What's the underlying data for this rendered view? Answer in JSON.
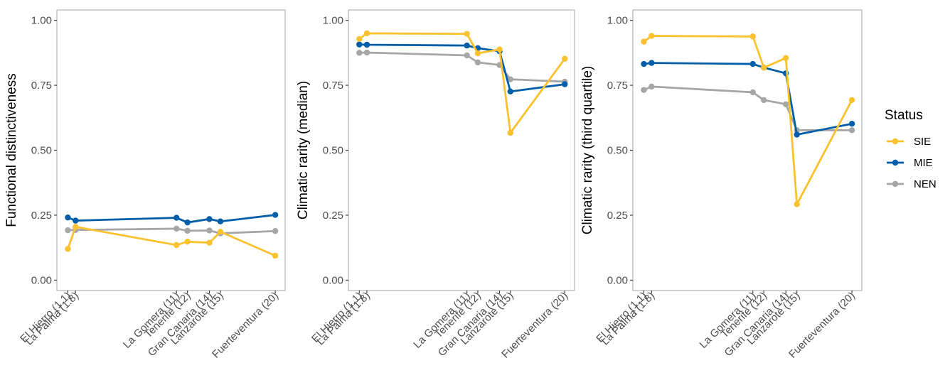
{
  "legend": {
    "title": "Status",
    "items": [
      {
        "name": "SIE",
        "color": "#F9C22E"
      },
      {
        "name": "MIE",
        "color": "#005EA8"
      },
      {
        "name": "NEN",
        "color": "#A6A6A6"
      }
    ]
  },
  "chart_data": [
    {
      "type": "line",
      "ylabel": "Functional distinctiveness",
      "xlabel": "",
      "x": [
        1.1,
        1.8,
        11,
        12,
        14,
        15,
        20
      ],
      "xticks": [
        1.1,
        1.8,
        11,
        12,
        14,
        15,
        20
      ],
      "xtick_labels": [
        "El Hierro (1.1)",
        "La Palma (1.8)",
        "La Gomera (11)",
        "Tenerife (12)",
        "Gran Canaria (14)",
        "Lanzarote (15)",
        "Fuerteventura (20)"
      ],
      "xlim": [
        0.1,
        20.9
      ],
      "ylim": [
        -0.04,
        1.04
      ],
      "yticks": [
        0,
        0.25,
        0.5,
        0.75,
        1.0
      ],
      "ytick_labels": [
        "0.00",
        "0.25",
        "0.50",
        "0.75",
        "1.00"
      ],
      "grid": false,
      "series": [
        {
          "name": "SIE",
          "values": [
            0.12,
            0.205,
            0.135,
            0.148,
            0.144,
            0.186,
            0.094
          ]
        },
        {
          "name": "MIE",
          "values": [
            0.241,
            0.229,
            0.24,
            0.222,
            0.235,
            0.226,
            0.251
          ]
        },
        {
          "name": "NEN",
          "values": [
            0.192,
            0.193,
            0.198,
            0.19,
            0.191,
            0.18,
            0.189
          ]
        }
      ]
    },
    {
      "type": "line",
      "ylabel": "Climatic rarity (median)",
      "xlabel": "",
      "x": [
        1.1,
        1.8,
        11,
        12,
        14,
        15,
        20
      ],
      "xticks": [
        1.1,
        1.8,
        11,
        12,
        14,
        15,
        20
      ],
      "xtick_labels": [
        "El Hierro (1.1)",
        "La Palma (1.8)",
        "La Gomera (11)",
        "Tenerife (12)",
        "Gran Canaria (14)",
        "Lanzarote (15)",
        "Fuerteventura (20)"
      ],
      "xlim": [
        0.1,
        20.9
      ],
      "ylim": [
        -0.04,
        1.04
      ],
      "yticks": [
        0,
        0.25,
        0.5,
        0.75,
        1.0
      ],
      "ytick_labels": [
        "0.00",
        "0.25",
        "0.50",
        "0.75",
        "1.00"
      ],
      "grid": false,
      "series": [
        {
          "name": "SIE",
          "values": [
            0.928,
            0.95,
            0.948,
            0.873,
            0.888,
            0.567,
            0.852
          ]
        },
        {
          "name": "MIE",
          "values": [
            0.907,
            0.906,
            0.903,
            0.893,
            0.881,
            0.726,
            0.754
          ]
        },
        {
          "name": "NEN",
          "values": [
            0.875,
            0.876,
            0.865,
            0.838,
            0.828,
            0.773,
            0.764
          ]
        }
      ]
    },
    {
      "type": "line",
      "ylabel": "Climatic rarity (third quartile)",
      "xlabel": "",
      "x": [
        1.1,
        1.8,
        11,
        12,
        14,
        15,
        20
      ],
      "xticks": [
        1.1,
        1.8,
        11,
        12,
        14,
        15,
        20
      ],
      "xtick_labels": [
        "El Hierro (1.1)",
        "La Palma (1.8)",
        "La Gomera (11)",
        "Tenerife (12)",
        "Gran Canaria (14)",
        "Lanzarote (15)",
        "Fuerteventura (20)"
      ],
      "xlim": [
        0.1,
        20.9
      ],
      "ylim": [
        -0.04,
        1.04
      ],
      "yticks": [
        0,
        0.25,
        0.5,
        0.75,
        1.0
      ],
      "ytick_labels": [
        "0.00",
        "0.25",
        "0.50",
        "0.75",
        "1.00"
      ],
      "grid": false,
      "series": [
        {
          "name": "SIE",
          "values": [
            0.918,
            0.94,
            0.938,
            0.818,
            0.855,
            0.292,
            0.693
          ]
        },
        {
          "name": "MIE",
          "values": [
            0.832,
            0.836,
            0.832,
            0.818,
            0.796,
            0.56,
            0.602
          ]
        },
        {
          "name": "NEN",
          "values": [
            0.732,
            0.745,
            0.723,
            0.693,
            0.677,
            0.577,
            0.577
          ]
        }
      ]
    }
  ]
}
